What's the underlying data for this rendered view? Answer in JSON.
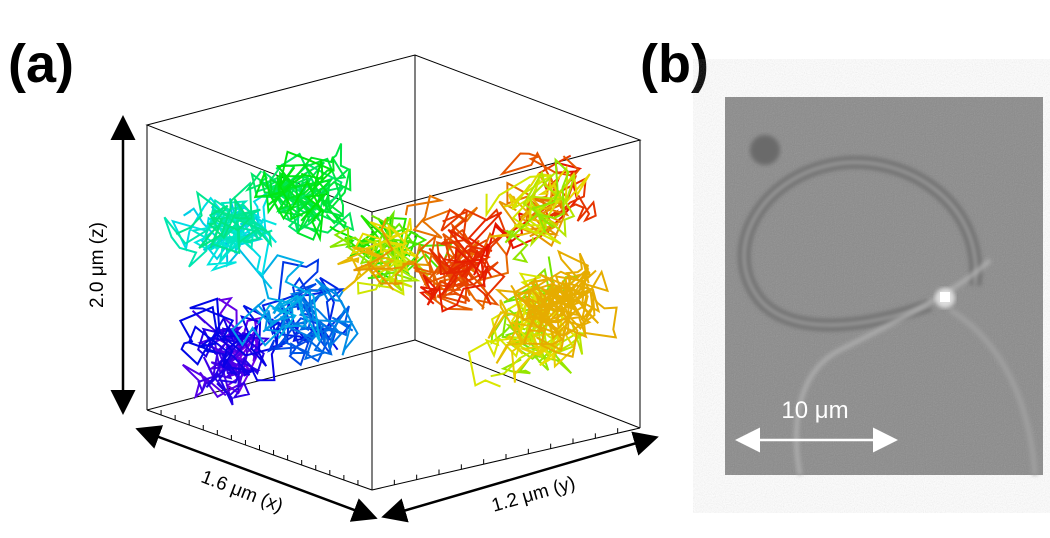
{
  "panel_a": {
    "label": "(a)",
    "z_axis": "2.0 μm (z)",
    "x_axis": "1.6 μm (x)",
    "y_axis": "1.2 μm (y)"
  },
  "panel_b": {
    "label": "(b)",
    "scale_bar": "10 μm"
  }
}
